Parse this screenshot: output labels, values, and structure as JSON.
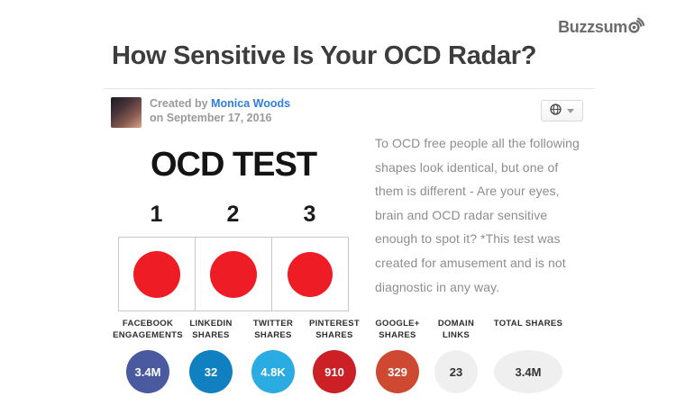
{
  "brand": {
    "name": "Buzzsum",
    "icon": "radar-waves-icon",
    "color": "#6b6b6b"
  },
  "page_title": "How Sensitive Is Your OCD Radar?",
  "author": {
    "created_by_label": "Created by",
    "name": "Monica Woods",
    "date_line": "on September 17, 2016",
    "link_color": "#2f7ee0"
  },
  "visibility_button": {
    "icon": "globe-icon"
  },
  "quiz_image": {
    "heading": "OCD TEST",
    "shape_color": "#ee1c24",
    "options": [
      {
        "number": "1",
        "dot_size": 52
      },
      {
        "number": "2",
        "dot_size": 52
      },
      {
        "number": "3",
        "dot_size": 50
      }
    ]
  },
  "description": "To OCD free people all the following\nshapes look identical, but one of\nthem is different - Are your eyes,\nbrain and OCD radar sensitive\nenough to spot it? *This test was\ncreated for amusement and is not\ndiagnostic in any way.",
  "stats": [
    {
      "label": "FACEBOOK\nENGAGEMENTS",
      "value": "3.4M",
      "color": "#4a5a9e",
      "text_color": "#ffffff"
    },
    {
      "label": "LINKEDIN\nSHARES",
      "value": "32",
      "color": "#1180c0",
      "text_color": "#ffffff"
    },
    {
      "label": "TWITTER\nSHARES",
      "value": "4.8K",
      "color": "#2aabe2",
      "text_color": "#ffffff"
    },
    {
      "label": "PINTEREST\nSHARES",
      "value": "910",
      "color": "#cb2026",
      "text_color": "#ffffff"
    },
    {
      "label": "GOOGLE+\nSHARES",
      "value": "329",
      "color": "#cd4932",
      "text_color": "#ffffff"
    },
    {
      "label": "DOMAIN\nLINKS",
      "value": "23",
      "color": "#efeff0",
      "text_color": "#333333"
    },
    {
      "label": "TOTAL SHARES",
      "value": "3.4M",
      "color": "#efeff0",
      "text_color": "#333333"
    }
  ]
}
